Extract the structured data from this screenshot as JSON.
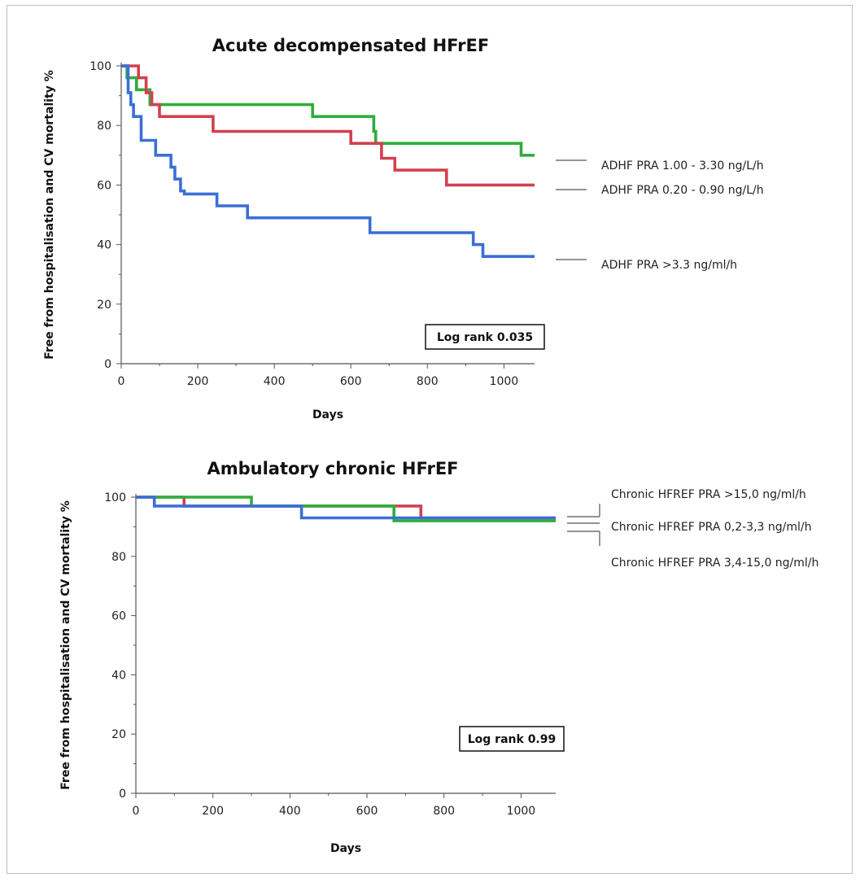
{
  "chart_data": [
    {
      "type": "line",
      "title": "Acute decompensated HFrEF",
      "xlabel": "Days",
      "ylabel": "Free from hospitalisation and CV mortality  %",
      "xlim": [
        0,
        1080
      ],
      "ylim": [
        0,
        100
      ],
      "xticks": [
        0,
        200,
        400,
        600,
        800,
        1000
      ],
      "yticks": [
        0,
        20,
        40,
        60,
        80,
        100
      ],
      "annotation": "Log rank 0.035",
      "series": [
        {
          "name": "ADHF PRA 1.00 - 3.30 ng/L/h",
          "color": "#2fae3a",
          "x": [
            0,
            15,
            40,
            75,
            500,
            660,
            665,
            1045,
            1080
          ],
          "y": [
            100,
            96,
            92,
            87,
            83,
            78,
            74,
            70,
            70
          ]
        },
        {
          "name": "ADHF PRA 0.20 - 0.90 ng/L/h",
          "color": "#d2404f",
          "x": [
            0,
            45,
            65,
            80,
            100,
            240,
            600,
            680,
            715,
            850,
            1080
          ],
          "y": [
            100,
            96,
            91,
            87,
            83,
            78,
            74,
            69,
            65,
            60,
            60
          ]
        },
        {
          "name": "ADHF PRA >3.3 ng/ml/h",
          "color": "#3b6fd6",
          "x": [
            0,
            18,
            25,
            32,
            52,
            90,
            130,
            140,
            155,
            165,
            250,
            330,
            650,
            920,
            945,
            1080
          ],
          "y": [
            100,
            91,
            87,
            83,
            75,
            70,
            66,
            62,
            58,
            57,
            53,
            49,
            44,
            40,
            36,
            36
          ]
        }
      ]
    },
    {
      "type": "line",
      "title": "Ambulatory chronic HFrEF",
      "xlabel": "Days",
      "ylabel": "Free from hospitalisation and CV mortality  %",
      "xlim": [
        0,
        1090
      ],
      "ylim": [
        0,
        100
      ],
      "xticks": [
        0,
        200,
        400,
        600,
        800,
        1000
      ],
      "yticks": [
        0,
        20,
        40,
        60,
        80,
        100
      ],
      "annotation": "Log rank 0.99",
      "series": [
        {
          "name": "Chronic HFREF PRA >15,0 ng/ml/h",
          "color": "#d2404f",
          "x": [
            0,
            125,
            740,
            1090
          ],
          "y": [
            100,
            97,
            93,
            93
          ]
        },
        {
          "name": "Chronic HFREF PRA 0,2-3,3 ng/ml/h",
          "color": "#2fae3a",
          "x": [
            0,
            300,
            670,
            1090
          ],
          "y": [
            100,
            97,
            92,
            92
          ]
        },
        {
          "name": "Chronic HFREF PRA 3,4-15,0 ng/ml/h",
          "color": "#3b6fd6",
          "x": [
            0,
            48,
            430,
            1090
          ],
          "y": [
            100,
            97,
            93,
            93
          ]
        }
      ]
    }
  ]
}
